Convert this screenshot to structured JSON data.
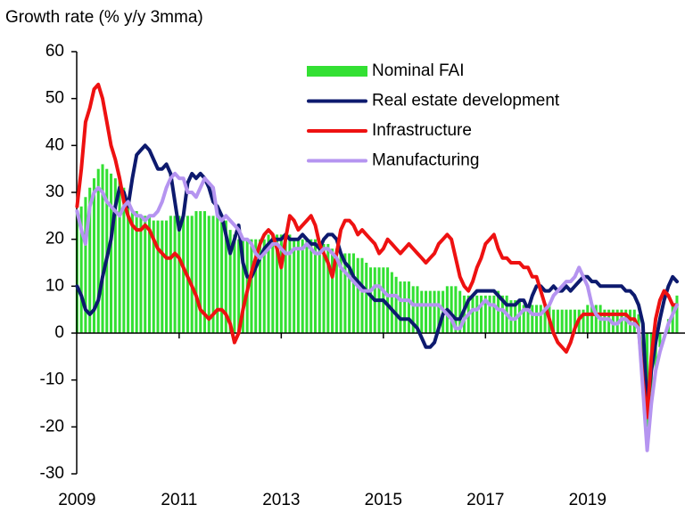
{
  "chart_data": {
    "type": "bar",
    "title": "Growth rate (% y/y 3mma)",
    "categories": [
      "2009",
      null,
      null,
      null,
      null,
      null,
      null,
      null,
      null,
      null,
      null,
      null,
      null,
      null,
      null,
      null,
      null,
      null,
      null,
      null,
      null,
      null,
      null,
      null,
      "2011",
      null,
      null,
      null,
      null,
      null,
      null,
      null,
      null,
      null,
      null,
      null,
      null,
      null,
      null,
      null,
      null,
      null,
      null,
      null,
      null,
      null,
      null,
      null,
      "2013",
      null,
      null,
      null,
      null,
      null,
      null,
      null,
      null,
      null,
      null,
      null,
      null,
      null,
      null,
      null,
      null,
      null,
      null,
      null,
      null,
      null,
      null,
      null,
      "2015",
      null,
      null,
      null,
      null,
      null,
      null,
      null,
      null,
      null,
      null,
      null,
      null,
      null,
      null,
      null,
      null,
      null,
      null,
      null,
      null,
      null,
      null,
      null,
      "2017",
      null,
      null,
      null,
      null,
      null,
      null,
      null,
      null,
      null,
      null,
      null,
      null,
      null,
      null,
      null,
      null,
      null,
      null,
      null,
      null,
      null,
      null,
      null,
      "2019",
      null,
      null,
      null,
      null,
      null,
      null,
      null,
      null,
      null,
      null,
      null,
      null,
      null,
      null,
      null,
      null,
      null,
      null,
      null,
      null,
      null
    ],
    "series": [
      {
        "name": "Nominal FAI",
        "type": "bar",
        "color": "#33e033",
        "values": [
          26,
          27,
          29,
          31,
          33,
          35,
          36,
          35,
          34,
          33,
          33,
          31,
          27,
          26,
          26,
          25,
          25,
          25,
          24,
          24,
          24,
          24,
          25,
          25,
          25,
          25,
          25,
          25,
          26,
          26,
          26,
          25,
          25,
          25,
          24,
          24,
          22,
          21,
          20,
          20,
          20,
          20,
          20,
          20,
          20,
          21,
          21,
          21,
          21,
          21,
          21,
          20,
          20,
          20,
          20,
          20,
          20,
          19,
          19,
          19,
          18,
          18,
          17,
          17,
          17,
          17,
          16,
          16,
          15,
          14,
          14,
          14,
          14,
          14,
          13,
          12,
          11,
          11,
          11,
          10,
          10,
          9,
          9,
          9,
          9,
          9,
          9,
          10,
          10,
          10,
          9,
          8,
          8,
          8,
          8,
          8,
          8,
          8,
          8,
          9,
          8,
          8,
          7,
          7,
          7,
          6,
          6,
          6,
          6,
          6,
          6,
          6,
          5,
          5,
          5,
          5,
          5,
          5,
          5,
          5,
          6,
          6,
          6,
          6,
          5,
          5,
          5,
          5,
          5,
          5,
          5,
          5,
          4,
          -10,
          -20,
          -15,
          -8,
          -3,
          0,
          3,
          6,
          8
        ]
      },
      {
        "name": "Real estate development",
        "type": "line",
        "color": "#0d1a6e",
        "values": [
          10,
          8,
          5,
          4,
          5,
          7,
          12,
          16,
          20,
          27,
          31,
          30,
          27,
          33,
          38,
          39,
          40,
          39,
          37,
          35,
          35,
          36,
          34,
          28,
          22,
          25,
          32,
          34,
          33,
          34,
          33,
          31,
          28,
          27,
          25,
          21,
          17,
          20,
          23,
          15,
          12,
          12,
          14,
          16,
          18,
          19,
          20,
          20,
          20,
          21,
          20,
          20,
          20,
          21,
          20,
          19,
          19,
          18,
          20,
          21,
          21,
          20,
          17,
          15,
          14,
          12,
          11,
          10,
          9,
          8,
          7,
          7,
          7,
          6,
          5,
          4,
          3,
          3,
          3,
          2,
          1,
          -1,
          -3,
          -3,
          -2,
          1,
          4,
          5,
          4,
          3,
          3,
          5,
          7,
          8,
          9,
          9,
          9,
          9,
          9,
          8,
          7,
          6,
          6,
          6,
          7,
          7,
          5,
          8,
          10,
          10,
          9,
          9,
          10,
          9,
          9,
          10,
          9,
          10,
          11,
          12,
          12,
          11,
          11,
          10,
          10,
          10,
          10,
          10,
          10,
          9,
          9,
          8,
          6,
          2,
          -16,
          -8,
          -2,
          3,
          7,
          10,
          12,
          11
        ]
      },
      {
        "name": "Infrastructure",
        "type": "line",
        "color": "#ee1111",
        "values": [
          27,
          35,
          45,
          48,
          52,
          53,
          50,
          45,
          40,
          37,
          33,
          28,
          25,
          23,
          22,
          22,
          23,
          22,
          20,
          18,
          17,
          16,
          16,
          17,
          16,
          14,
          12,
          10,
          8,
          5,
          4,
          3,
          4,
          5,
          5,
          4,
          2,
          -2,
          0,
          5,
          9,
          13,
          16,
          19,
          21,
          22,
          21,
          18,
          14,
          20,
          25,
          24,
          22,
          23,
          24,
          25,
          23,
          19,
          17,
          15,
          12,
          17,
          22,
          24,
          24,
          23,
          21,
          22,
          21,
          20,
          19,
          17,
          18,
          20,
          19,
          18,
          17,
          18,
          19,
          18,
          17,
          16,
          15,
          16,
          17,
          19,
          20,
          21,
          20,
          16,
          12,
          10,
          9,
          11,
          14,
          16,
          19,
          20,
          21,
          18,
          16,
          16,
          15,
          15,
          15,
          14,
          14,
          12,
          12,
          9,
          6,
          3,
          0,
          -2,
          -3,
          -4,
          -2,
          1,
          3,
          4,
          4,
          4,
          4,
          4,
          4,
          4,
          4,
          4,
          4,
          4,
          3,
          3,
          1,
          -10,
          -18,
          -5,
          3,
          7,
          9,
          8,
          6,
          6
        ]
      },
      {
        "name": "Manufacturing",
        "type": "line",
        "color": "#b594f0",
        "values": [
          26,
          22,
          19,
          27,
          30,
          31,
          30,
          28,
          27,
          26,
          25,
          27,
          28,
          26,
          25,
          25,
          24,
          25,
          25,
          26,
          28,
          31,
          33,
          34,
          33,
          33,
          30,
          30,
          29,
          31,
          33,
          32,
          31,
          25,
          24,
          25,
          24,
          23,
          22,
          20,
          20,
          19,
          17,
          16,
          17,
          18,
          19,
          19,
          18,
          17,
          17,
          18,
          18,
          18,
          19,
          18,
          17,
          17,
          18,
          18,
          17,
          16,
          14,
          13,
          12,
          11,
          10,
          9,
          9,
          9,
          10,
          10,
          9,
          8,
          8,
          8,
          7,
          7,
          7,
          6,
          6,
          6,
          6,
          6,
          6,
          6,
          5,
          4,
          3,
          1,
          1,
          3,
          4,
          5,
          5,
          6,
          7,
          6,
          6,
          5,
          5,
          4,
          3,
          3,
          4,
          5,
          5,
          4,
          4,
          4,
          5,
          6,
          8,
          9,
          10,
          11,
          11,
          12,
          14,
          12,
          10,
          6,
          4,
          3,
          3,
          3,
          2,
          2,
          3,
          3,
          2,
          2,
          1,
          -12,
          -25,
          -15,
          -8,
          -4,
          -1,
          2,
          4,
          6
        ]
      }
    ],
    "ylim": [
      -30,
      60
    ],
    "yticks": [
      -30,
      -20,
      -10,
      0,
      10,
      20,
      30,
      40,
      50,
      60
    ],
    "grid": false
  }
}
